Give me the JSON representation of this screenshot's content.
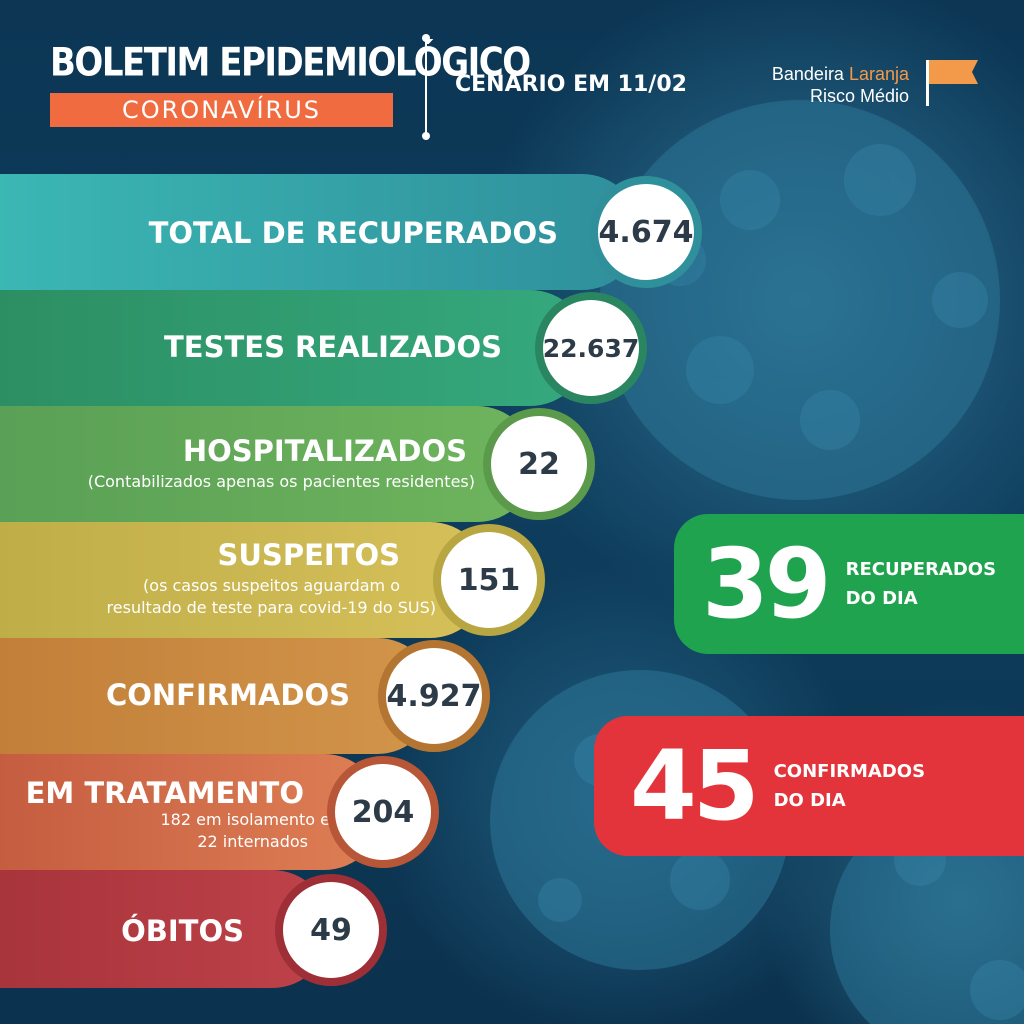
{
  "header": {
    "title": "BOLETIM EPIDEMIOLÓGICO",
    "subtitle": "CORONAVÍRUS",
    "scenario": "CENÁRIO EM 11/02",
    "flag_line1_prefix": "Bandeira ",
    "flag_line1_color": "Laranja",
    "flag_line2": "Risco Médio",
    "flag_color": "#f39a4a"
  },
  "stats": [
    {
      "label": "TOTAL DE RECUPERADOS",
      "value": "4.674",
      "color": "#3bb7b4"
    },
    {
      "label": "TESTES REALIZADOS",
      "value": "22.637",
      "color": "#2e9d74"
    },
    {
      "label": "HOSPITALIZADOS",
      "note": "(Contabilizados apenas os pacientes residentes)",
      "value": "22",
      "color": "#64ab55"
    },
    {
      "label": "SUSPEITOS",
      "note_line1": "(os casos suspeitos aguardam o",
      "note_line2": "resultado de teste para covid-19 do SUS)",
      "value": "151",
      "color": "#c7b54a"
    },
    {
      "label": "CONFIRMADOS",
      "value": "4.927",
      "color": "#c98a3e"
    },
    {
      "label": "EM TRATAMENTO",
      "note_line1": "182 em isolamento e",
      "note_line2": "22 internados",
      "value": "204",
      "color": "#cf6a44"
    },
    {
      "label": "ÓBITOS",
      "value": "49",
      "color": "#b03a3f"
    }
  ],
  "daily": {
    "recovered": {
      "value": "39",
      "label1": "RECUPERADOS",
      "label2": "DO DIA",
      "color": "#1fa34f"
    },
    "confirmed": {
      "value": "45",
      "label1": "CONFIRMADOS",
      "label2": "DO DIA",
      "color": "#e3343b"
    }
  }
}
